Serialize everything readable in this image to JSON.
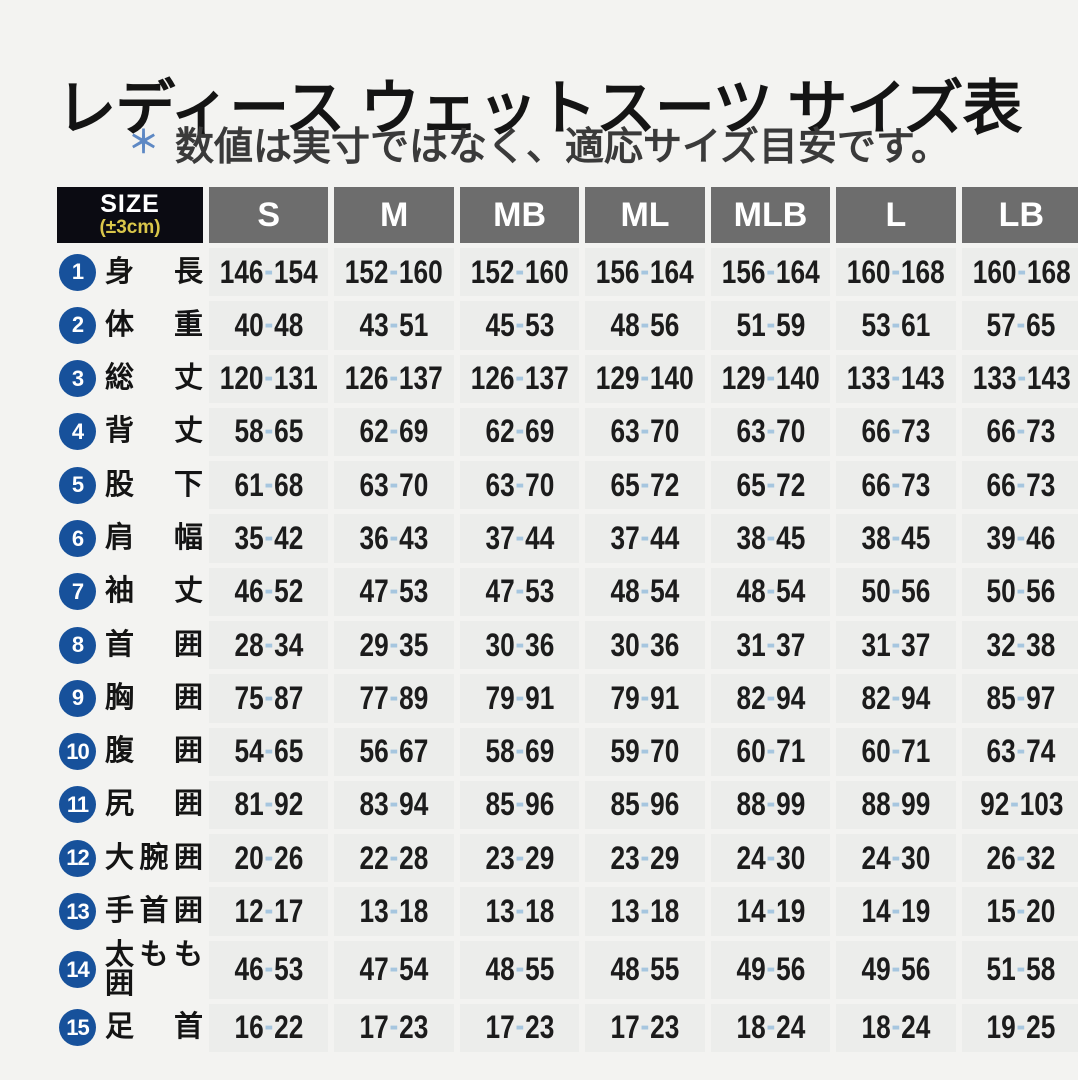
{
  "title": "レディース ウェットスーツ サイズ表",
  "note": {
    "asterisk": "＊",
    "text": "数値は実寸ではなく、適応サイズ目安です。"
  },
  "table": {
    "corner": {
      "line1": "SIZE",
      "line2": "(±3cm)"
    },
    "columns": [
      "S",
      "M",
      "MB",
      "ML",
      "MLB",
      "L",
      "LB"
    ],
    "rows": [
      {
        "num": "1",
        "label": "身長",
        "values": [
          "146-154",
          "152-160",
          "152-160",
          "156-164",
          "156-164",
          "160-168",
          "160-168"
        ]
      },
      {
        "num": "2",
        "label": "体重",
        "values": [
          "40-48",
          "43-51",
          "45-53",
          "48-56",
          "51-59",
          "53-61",
          "57-65"
        ]
      },
      {
        "num": "3",
        "label": "総丈",
        "values": [
          "120-131",
          "126-137",
          "126-137",
          "129-140",
          "129-140",
          "133-143",
          "133-143"
        ]
      },
      {
        "num": "4",
        "label": "背丈",
        "values": [
          "58-65",
          "62-69",
          "62-69",
          "63-70",
          "63-70",
          "66-73",
          "66-73"
        ]
      },
      {
        "num": "5",
        "label": "股下",
        "values": [
          "61-68",
          "63-70",
          "63-70",
          "65-72",
          "65-72",
          "66-73",
          "66-73"
        ]
      },
      {
        "num": "6",
        "label": "肩幅",
        "values": [
          "35-42",
          "36-43",
          "37-44",
          "37-44",
          "38-45",
          "38-45",
          "39-46"
        ]
      },
      {
        "num": "7",
        "label": "袖丈",
        "values": [
          "46-52",
          "47-53",
          "47-53",
          "48-54",
          "48-54",
          "50-56",
          "50-56"
        ]
      },
      {
        "num": "8",
        "label": "首囲",
        "values": [
          "28-34",
          "29-35",
          "30-36",
          "30-36",
          "31-37",
          "31-37",
          "32-38"
        ]
      },
      {
        "num": "9",
        "label": "胸囲",
        "values": [
          "75-87",
          "77-89",
          "79-91",
          "79-91",
          "82-94",
          "82-94",
          "85-97"
        ]
      },
      {
        "num": "10",
        "label": "腹囲",
        "values": [
          "54-65",
          "56-67",
          "58-69",
          "59-70",
          "60-71",
          "60-71",
          "63-74"
        ]
      },
      {
        "num": "11",
        "label": "尻囲",
        "values": [
          "81-92",
          "83-94",
          "85-96",
          "85-96",
          "88-99",
          "88-99",
          "92-103"
        ]
      },
      {
        "num": "12",
        "label": "大腕囲",
        "values": [
          "20-26",
          "22-28",
          "23-29",
          "23-29",
          "24-30",
          "24-30",
          "26-32"
        ]
      },
      {
        "num": "13",
        "label": "手首囲",
        "values": [
          "12-17",
          "13-18",
          "13-18",
          "13-18",
          "14-19",
          "14-19",
          "15-20"
        ]
      },
      {
        "num": "14",
        "label": "太もも囲",
        "values": [
          "46-53",
          "47-54",
          "48-55",
          "48-55",
          "49-56",
          "49-56",
          "51-58"
        ]
      },
      {
        "num": "15",
        "label": "足首",
        "values": [
          "16-22",
          "17-23",
          "17-23",
          "17-23",
          "18-24",
          "18-24",
          "19-25"
        ]
      }
    ]
  },
  "colors": {
    "page_background": "#f3f3f1",
    "corner_background": "#0b0b12",
    "corner_subtext_yellow": "#d9c64a",
    "header_background": "#6d6d6d",
    "header_text": "#ffffff",
    "cell_background": "#ecedeb",
    "value_text": "#1c1c1c",
    "range_dash_blue": "#a6c6df",
    "number_circle_blue": "#17519b",
    "note_asterisk_blue": "#5d88c4"
  }
}
